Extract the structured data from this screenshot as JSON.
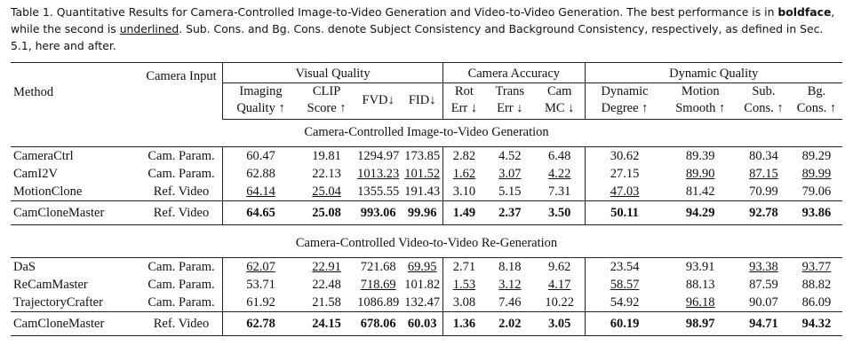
{
  "caption": {
    "parts": [
      "Table 1.  Quantitative Results for Camera-Controlled Image-to-Video Generation and Video-to-Video Generation. The best performance is in ",
      "boldface",
      ", while the second is ",
      "underlined",
      ". Sub. Cons. and Bg. Cons. denote Subject Consistency and Background Consistency, respectively, as defined in Sec. 5.1, here and after."
    ]
  },
  "table": {
    "method_header": "Method",
    "input_header": "Camera Input",
    "groups": [
      {
        "label": "Visual Quality",
        "columns": [
          "Imaging Quality ↑",
          "CLIP Score ↑",
          "FVD↓",
          "FID↓"
        ]
      },
      {
        "label": "Camera Accuracy",
        "columns": [
          "Rot Err ↓",
          "Trans Err ↓",
          "Cam MC ↓"
        ]
      },
      {
        "label": "Dynamic Quality",
        "columns": [
          "Dynamic Degree ↑",
          "Motion Smooth ↑",
          "Sub. Cons. ↑",
          "Bg. Cons. ↑"
        ]
      }
    ],
    "sections": [
      {
        "title": "Camera-Controlled Image-to-Video Generation",
        "rows": [
          {
            "method": "CameraCtrl",
            "input": "Cam. Param.",
            "values": [
              "60.47",
              "19.81",
              "1294.97",
              "173.85",
              "2.82",
              "4.52",
              "6.48",
              "30.62",
              "89.39",
              "80.34",
              "89.29"
            ],
            "underlined": []
          },
          {
            "method": "CamI2V",
            "input": "Cam. Param.",
            "values": [
              "62.88",
              "22.13",
              "1013.23",
              "101.52",
              "1.62",
              "3.07",
              "4.22",
              "27.15",
              "89.90",
              "87.15",
              "89.99"
            ],
            "underlined": [
              2,
              3,
              4,
              5,
              6,
              8,
              9,
              10
            ]
          },
          {
            "method": "MotionClone",
            "input": "Ref. Video",
            "values": [
              "64.14",
              "25.04",
              "1355.55",
              "191.43",
              "3.10",
              "5.15",
              "7.31",
              "47.03",
              "81.42",
              "70.99",
              "79.06"
            ],
            "underlined": [
              0,
              1,
              7
            ]
          }
        ],
        "ours": {
          "method": "CamCloneMaster",
          "input": "Ref. Video",
          "values": [
            "64.65",
            "25.08",
            "993.06",
            "99.96",
            "1.49",
            "2.37",
            "3.50",
            "50.11",
            "94.29",
            "92.78",
            "93.86"
          ]
        }
      },
      {
        "title": "Camera-Controlled Video-to-Video Re-Generation",
        "rows": [
          {
            "method": "DaS",
            "input": "Cam. Param.",
            "values": [
              "62.07",
              "22.91",
              "721.68",
              "69.95",
              "2.71",
              "8.18",
              "9.62",
              "23.54",
              "93.91",
              "93.38",
              "93.77"
            ],
            "underlined": [
              0,
              1,
              3,
              9,
              10
            ]
          },
          {
            "method": "ReCamMaster",
            "input": "Cam. Param.",
            "values": [
              "53.71",
              "22.48",
              "718.69",
              "101.82",
              "1.53",
              "3.12",
              "4.17",
              "58.57",
              "88.13",
              "87.59",
              "88.82"
            ],
            "underlined": [
              2,
              4,
              5,
              6,
              7
            ]
          },
          {
            "method": "TrajectoryCrafter",
            "input": "Cam. Param.",
            "values": [
              "61.92",
              "21.58",
              "1086.89",
              "132.47",
              "3.08",
              "7.46",
              "10.22",
              "54.92",
              "96.18",
              "90.07",
              "86.09"
            ],
            "underlined": [
              8
            ]
          }
        ],
        "ours": {
          "method": "CamCloneMaster",
          "input": "Ref. Video",
          "values": [
            "62.78",
            "24.15",
            "678.06",
            "60.03",
            "1.36",
            "2.02",
            "3.05",
            "60.19",
            "98.97",
            "94.71",
            "94.32"
          ]
        }
      }
    ]
  }
}
